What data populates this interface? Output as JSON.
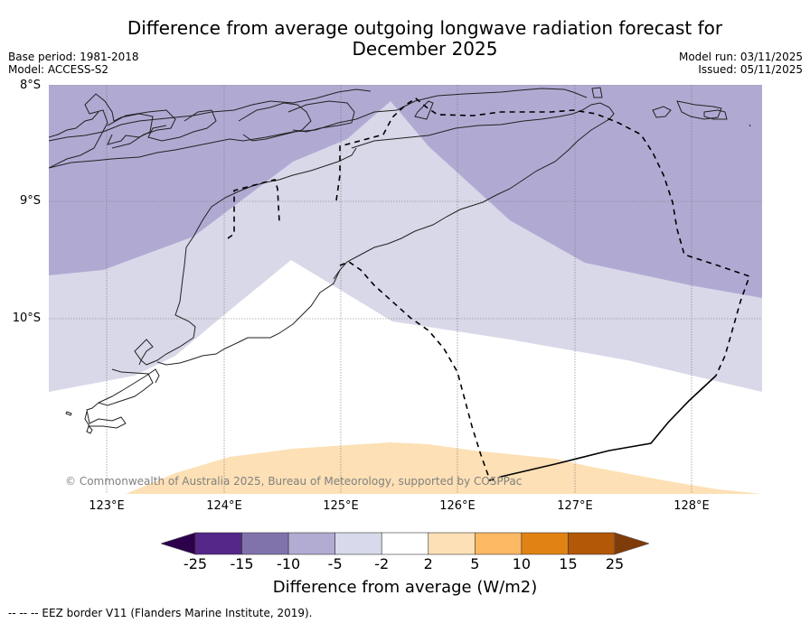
{
  "title_line1": "Difference from average outgoing longwave radiation forecast for",
  "title_line2": "December 2025",
  "base_period": "Base period: 1981-2018",
  "model": "Model: ACCESS-S2",
  "model_run": "Model run: 03/11/2025",
  "issued": "Issued: 05/11/2025",
  "map": {
    "lon_range": [
      122.5,
      128.6
    ],
    "lat_range": [
      -11.5,
      -8.0
    ],
    "lon_ticks": [
      "123°E",
      "124°E",
      "125°E",
      "126°E",
      "127°E",
      "128°E"
    ],
    "lat_ticks": [
      "8°S",
      "9°S",
      "10°S"
    ],
    "regions": [
      {
        "category": "-10 to -5",
        "color": "#b0aad3"
      },
      {
        "category": "-5 to -2",
        "color": "#d8d8e9"
      },
      {
        "category": "-2 to 2",
        "color": "#ffffff"
      },
      {
        "category": "2 to 5",
        "color": "#fde0b5"
      }
    ],
    "features": [
      "coastline",
      "EEZ border (dashed)"
    ]
  },
  "copyright": "© Commonwealth of Australia 2025, Bureau of Meteorology, supported by COSPPac",
  "colorbar": {
    "label": "Difference from average (W/m2)",
    "ticks": [
      "-25",
      "-15",
      "-10",
      "-5",
      "-2",
      "2",
      "5",
      "10",
      "15",
      "25"
    ],
    "colors": [
      "#2d004b",
      "#542788",
      "#8073ac",
      "#b2abd2",
      "#d8daeb",
      "#ffffff",
      "#fee0b6",
      "#fdb863",
      "#e08214",
      "#b35806",
      "#7f3b08"
    ]
  },
  "footer": "--  --  -- EEZ border V11 (Flanders Marine Institute, 2019)."
}
